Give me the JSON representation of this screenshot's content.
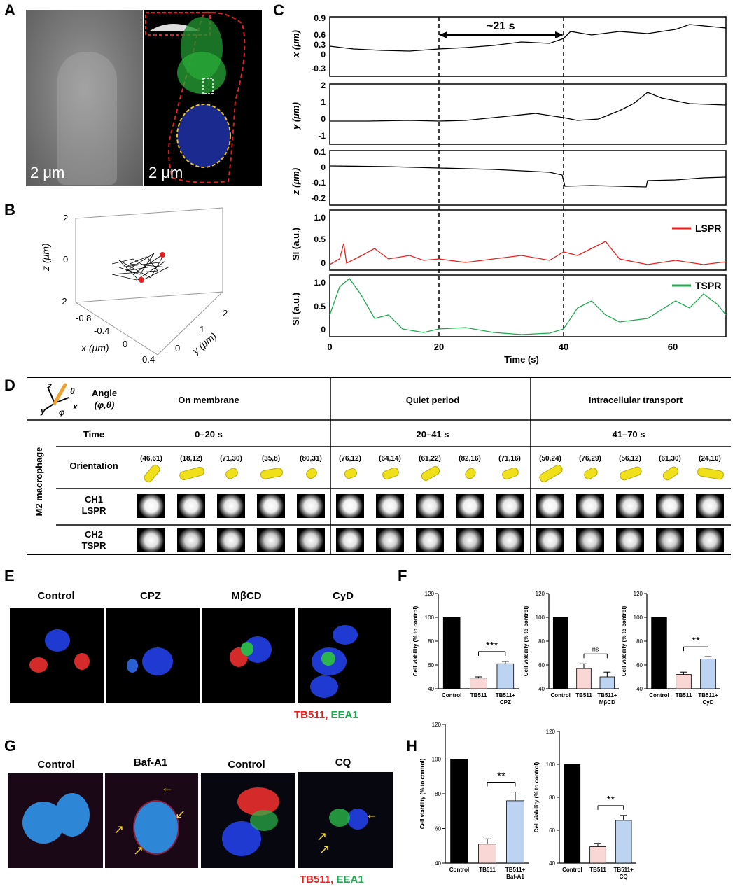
{
  "panels": {
    "A": {
      "letter": "A",
      "scale_left": "2 μm",
      "scale_right": "2 μm"
    },
    "B": {
      "letter": "B",
      "z_label": "z (μm)",
      "x_label": "x (μm)",
      "y_label": "y (μm)",
      "z_ticks": [
        "2",
        "0",
        "-2"
      ],
      "x_ticks": [
        "-0.8",
        "-0.4",
        "0",
        "0.4"
      ],
      "y_ticks": [
        "0",
        "1",
        "2"
      ]
    },
    "C": {
      "letter": "C",
      "interval": "~21 s",
      "xlabel": "Time (s)",
      "x_ticks": [
        "0",
        "20",
        "40",
        "60"
      ],
      "tracks": [
        {
          "ylabel": "x (μm)",
          "ticks": [
            "0.9",
            "0.6",
            "0.3",
            "0",
            "-0.3"
          ]
        },
        {
          "ylabel": "y (μm)",
          "ticks": [
            "2",
            "1",
            "0",
            "-1"
          ]
        },
        {
          "ylabel": "z (μm)",
          "ticks": [
            "0.1",
            "0",
            "-0.1",
            "-0.2"
          ]
        },
        {
          "ylabel": "SI (a.u.)",
          "ticks": [
            "1.0",
            "0.5",
            "0"
          ],
          "legend": "LSPR",
          "color": "#e8231f"
        },
        {
          "ylabel": "SI (a.u.)",
          "ticks": [
            "1.0",
            "0.5",
            "0"
          ],
          "legend": "TSPR",
          "color": "#1faa4f"
        }
      ]
    },
    "D": {
      "letter": "D",
      "angle_title": "Angle",
      "angle_sub": "(φ,θ)",
      "axis_z": "z",
      "axis_y": "y",
      "axis_x": "x",
      "axis_phi": "φ",
      "axis_theta": "θ",
      "side_label": "M2 macrophage",
      "rows": {
        "time": "Time",
        "orientation": "Orientation",
        "ch1": "CH1",
        "ch1b": "LSPR",
        "ch2": "CH2",
        "ch2b": "TSPR"
      },
      "groups": [
        {
          "title": "On membrane",
          "time": "0–20 s",
          "angles": [
            "(46,61)",
            "(18,12)",
            "(71,30)",
            "(35,8)",
            "(80,31)"
          ]
        },
        {
          "title": "Quiet period",
          "time": "20–41 s",
          "angles": [
            "(76,12)",
            "(64,14)",
            "(61,22)",
            "(82,16)",
            "(71,16)"
          ]
        },
        {
          "title": "Intracellular transport",
          "time": "41–70 s",
          "angles": [
            "(50,24)",
            "(76,29)",
            "(56,12)",
            "(61,30)",
            "(24,10)"
          ]
        }
      ]
    },
    "E": {
      "letter": "E",
      "labels": [
        "Control",
        "CPZ",
        "MβCD",
        "CyD"
      ],
      "legend_red": "TB511,",
      "legend_green": "EEA1"
    },
    "F": {
      "letter": "F"
    },
    "G": {
      "letter": "G",
      "labels": [
        "Control",
        "Baf-A1",
        "Control",
        "CQ"
      ],
      "legend_red": "TB511,",
      "legend_green": "EEA1"
    },
    "H": {
      "letter": "H"
    }
  },
  "chart_data": [
    {
      "type": "bar",
      "panel": "F1",
      "ylabel": "Cell viability (% to control)",
      "ylim": [
        40,
        120
      ],
      "yticks": [
        "40",
        "60",
        "80",
        "100",
        "120"
      ],
      "categories": [
        "Control",
        "TB511",
        "TB511+\nCPZ"
      ],
      "category_lines": [
        [
          "Control"
        ],
        [
          "TB511"
        ],
        [
          "TB511+",
          "CPZ"
        ]
      ],
      "values": [
        100,
        49,
        61
      ],
      "errors": [
        0,
        1,
        2
      ],
      "colors": [
        "#000000",
        "#f9d7d5",
        "#bcd4f1"
      ],
      "significance": "***",
      "sig_pair": [
        1,
        2
      ]
    },
    {
      "type": "bar",
      "panel": "F2",
      "ylabel": "Cell viability (% to control)",
      "ylim": [
        40,
        120
      ],
      "yticks": [
        "40",
        "60",
        "80",
        "100",
        "120"
      ],
      "categories": [
        "Control",
        "TB511",
        "TB511+\nMβCD"
      ],
      "category_lines": [
        [
          "Control"
        ],
        [
          "TB511"
        ],
        [
          "TB511+",
          "MβCD"
        ]
      ],
      "values": [
        100,
        57,
        50
      ],
      "errors": [
        0,
        4,
        4
      ],
      "colors": [
        "#000000",
        "#f9d7d5",
        "#bcd4f1"
      ],
      "significance": "ns",
      "sig_pair": [
        1,
        2
      ]
    },
    {
      "type": "bar",
      "panel": "F3",
      "ylabel": "Cell viability (% to control)",
      "ylim": [
        40,
        120
      ],
      "yticks": [
        "40",
        "60",
        "80",
        "100",
        "120"
      ],
      "categories": [
        "Control",
        "TB511",
        "TB511+\nCyD"
      ],
      "category_lines": [
        [
          "Control"
        ],
        [
          "TB511"
        ],
        [
          "TB511+",
          "CyD"
        ]
      ],
      "values": [
        100,
        52,
        65
      ],
      "errors": [
        0,
        2,
        2
      ],
      "colors": [
        "#000000",
        "#f9d7d5",
        "#bcd4f1"
      ],
      "significance": "**",
      "sig_pair": [
        1,
        2
      ]
    },
    {
      "type": "bar",
      "panel": "H1",
      "ylabel": "Cell viability (% to control)",
      "ylim": [
        40,
        120
      ],
      "yticks": [
        "40",
        "60",
        "80",
        "100",
        "120"
      ],
      "categories": [
        "Control",
        "TB511",
        "TB511+\nBaf-A1"
      ],
      "category_lines": [
        [
          "Control"
        ],
        [
          "TB511"
        ],
        [
          "TB511+",
          "Baf-A1"
        ]
      ],
      "values": [
        100,
        51,
        76
      ],
      "errors": [
        0,
        3,
        5
      ],
      "colors": [
        "#000000",
        "#f9d7d5",
        "#bcd4f1"
      ],
      "significance": "**",
      "sig_pair": [
        1,
        2
      ]
    },
    {
      "type": "bar",
      "panel": "H2",
      "ylabel": "Cell viability (% to control)",
      "ylim": [
        40,
        120
      ],
      "yticks": [
        "40",
        "60",
        "80",
        "100",
        "120"
      ],
      "categories": [
        "Control",
        "TB511",
        "TB511+\nCQ"
      ],
      "category_lines": [
        [
          "Control"
        ],
        [
          "TB511"
        ],
        [
          "TB511+",
          "CQ"
        ]
      ],
      "values": [
        100,
        50,
        66
      ],
      "errors": [
        0,
        2,
        3
      ],
      "colors": [
        "#000000",
        "#f9d7d5",
        "#bcd4f1"
      ],
      "significance": "**",
      "sig_pair": [
        1,
        2
      ]
    }
  ]
}
